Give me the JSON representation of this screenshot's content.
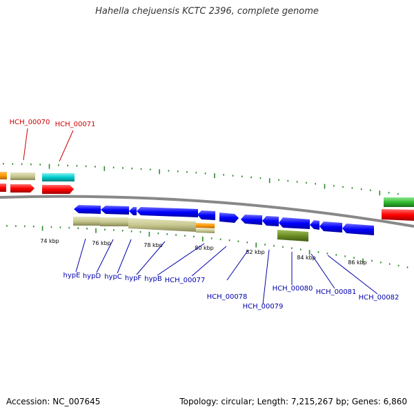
{
  "title": "Hahella chejuensis KCTC 2396, complete genome",
  "footer": {
    "accession": "Accession: NC_007645",
    "info": "Topology: circular; Length: 7,215,267 bp; Genes: 6,860"
  },
  "colors": {
    "backbone": "#808080",
    "tick": "#2a8a2a",
    "label_red": "#cc0000",
    "label_blue": "#0000aa",
    "gene_blue": "#0000ff",
    "gene_red": "#ff0000",
    "gene_tan": "#c8c890",
    "gene_orange": "#ff9900",
    "gene_cyan": "#00cccc",
    "gene_green": "#33bb33",
    "gene_olive": "#6b8e23"
  },
  "axis": {
    "tick_labels": [
      "74 kbp",
      "76 kbp",
      "78 kbp",
      "80 kbp",
      "82 kbp",
      "84 kbp",
      "86 kbp"
    ]
  },
  "labels": [
    {
      "text": "HCH_00070",
      "color": "red"
    },
    {
      "text": "HCH_00071",
      "color": "red"
    },
    {
      "text": "hypE",
      "color": "blue"
    },
    {
      "text": "hypD",
      "color": "blue"
    },
    {
      "text": "hypC",
      "color": "blue"
    },
    {
      "text": "hypF",
      "color": "blue"
    },
    {
      "text": "hypB",
      "color": "blue"
    },
    {
      "text": "HCH_00077",
      "color": "blue"
    },
    {
      "text": "HCH_00078",
      "color": "blue"
    },
    {
      "text": "HCH_00079",
      "color": "blue"
    },
    {
      "text": "HCH_00080",
      "color": "blue"
    },
    {
      "text": "HCH_00081",
      "color": "blue"
    },
    {
      "text": "HCH_00082",
      "color": "blue"
    }
  ]
}
